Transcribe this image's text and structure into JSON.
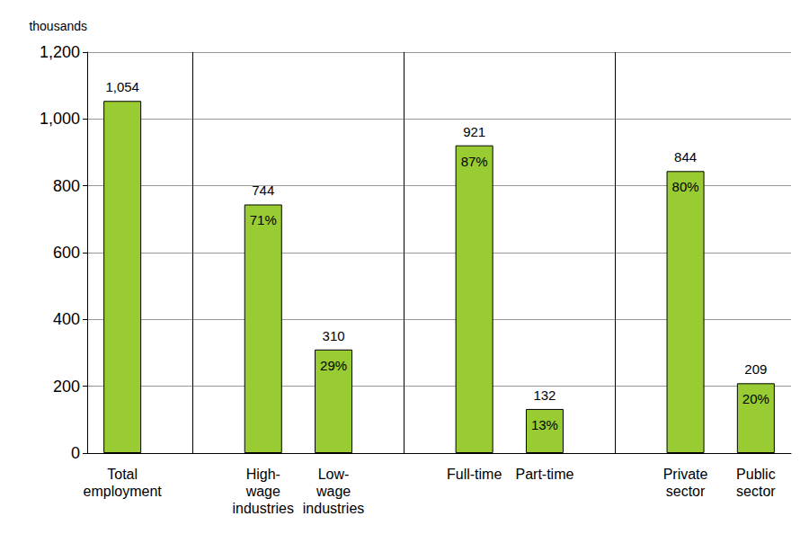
{
  "chart_data": {
    "type": "bar",
    "y_label": "thousands",
    "categories": [
      "Total\nemployment",
      null,
      "High-\nwage\nindustries",
      "Low-\nwage\nindustries",
      null,
      "Full-time",
      "Part-time",
      null,
      "Private\nsector",
      "Public\nsector"
    ],
    "values": [
      1054,
      null,
      744,
      310,
      null,
      921,
      132,
      null,
      844,
      209
    ],
    "value_labels": [
      "1,054",
      null,
      "744",
      "310",
      null,
      "921",
      "132",
      null,
      "844",
      "209"
    ],
    "share_labels": [
      null,
      null,
      "71%",
      "29%",
      null,
      "87%",
      "13%",
      null,
      "80%",
      "20%"
    ],
    "color": "#99cc33",
    "ylim": [
      0,
      1200
    ],
    "yticks": [
      0,
      200,
      400,
      600,
      800,
      {
        "value": 1000,
        "label": "1,000"
      },
      {
        "value": 1200,
        "label": "1,200"
      }
    ],
    "grid": true,
    "data_labels": true
  }
}
